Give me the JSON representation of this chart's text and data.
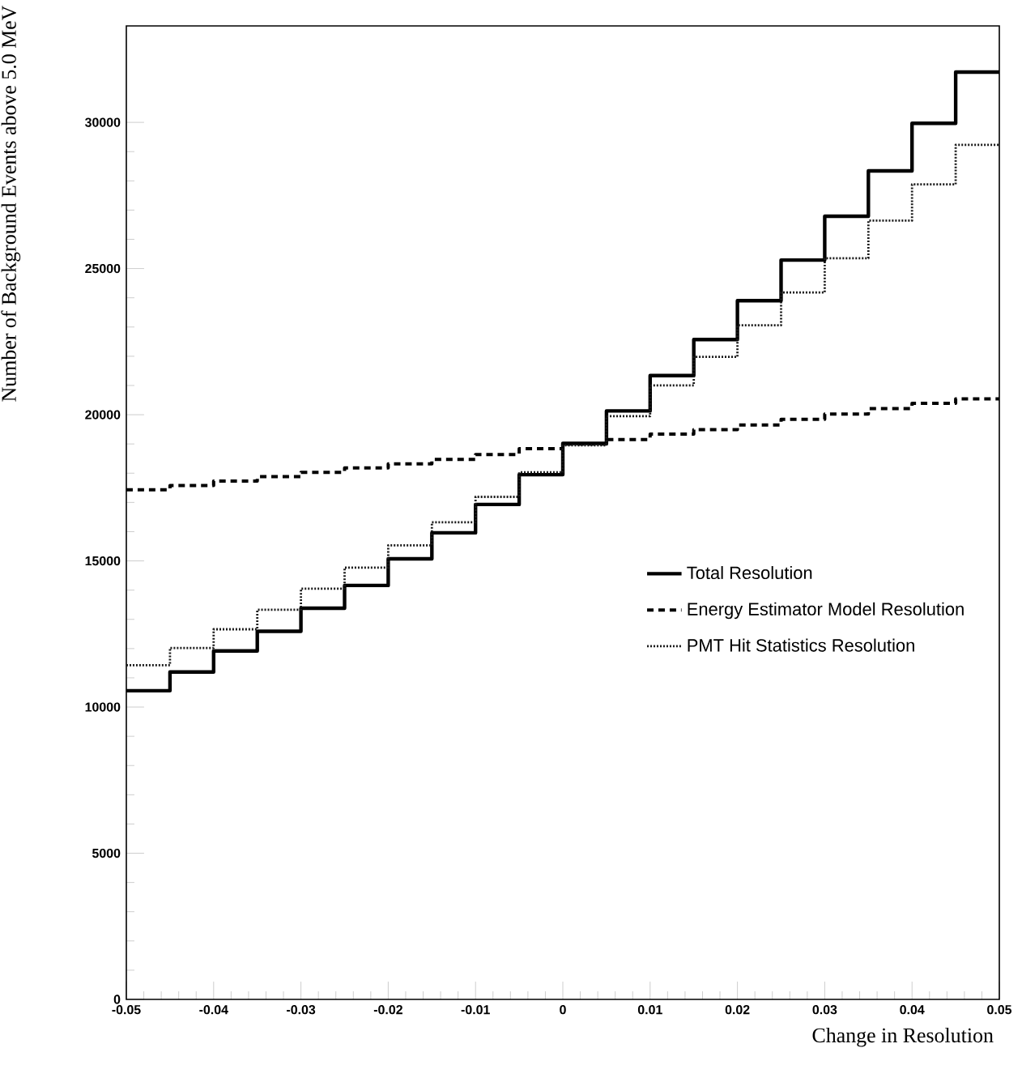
{
  "chart_data": {
    "type": "histogram",
    "xlabel": "Change in Resolution",
    "ylabel": "Number of Background Events above 5.0 MeV",
    "bins": [
      -0.05,
      -0.045,
      -0.04,
      -0.035,
      -0.03,
      -0.025,
      -0.02,
      -0.015,
      -0.01,
      -0.005,
      0,
      0.005,
      0.01,
      0.015,
      0.02,
      0.025,
      0.03,
      0.035,
      0.04,
      0.045,
      0.05
    ],
    "series": [
      {
        "name": "Total Resolution",
        "color": "#000000",
        "line_style": "solid",
        "values": [
          10560,
          11200,
          11920,
          12590,
          13380,
          14160,
          15070,
          15960,
          16930,
          17950,
          19020,
          20130,
          21340,
          22570,
          23900,
          25290,
          26790,
          28340,
          29970,
          31720
        ]
      },
      {
        "name": "Energy Estimator Model Resolution",
        "color": "#000000",
        "line_style": "dashed",
        "values": [
          17430,
          17580,
          17730,
          17880,
          18030,
          18180,
          18320,
          18470,
          18640,
          18840,
          19000,
          19150,
          19340,
          19490,
          19650,
          19840,
          20020,
          20210,
          20390,
          20540
        ]
      },
      {
        "name": "PMT Hit Statistics Resolution",
        "color": "#1a1a1a",
        "line_style": "dotted",
        "values": [
          11430,
          12020,
          12660,
          13330,
          14050,
          14770,
          15530,
          16320,
          17190,
          18030,
          18950,
          19950,
          21000,
          21980,
          23060,
          24180,
          25350,
          26640,
          27880,
          29230
        ]
      }
    ],
    "xlim": [
      -0.05,
      0.05
    ],
    "ylim": [
      0,
      33300
    ],
    "xticks": [
      -0.05,
      -0.04,
      -0.03,
      -0.02,
      -0.01,
      0,
      0.01,
      0.02,
      0.03,
      0.04,
      0.05
    ],
    "yticks": [
      0,
      5000,
      10000,
      15000,
      20000,
      25000,
      30000
    ],
    "grid": false,
    "legend": "right"
  }
}
